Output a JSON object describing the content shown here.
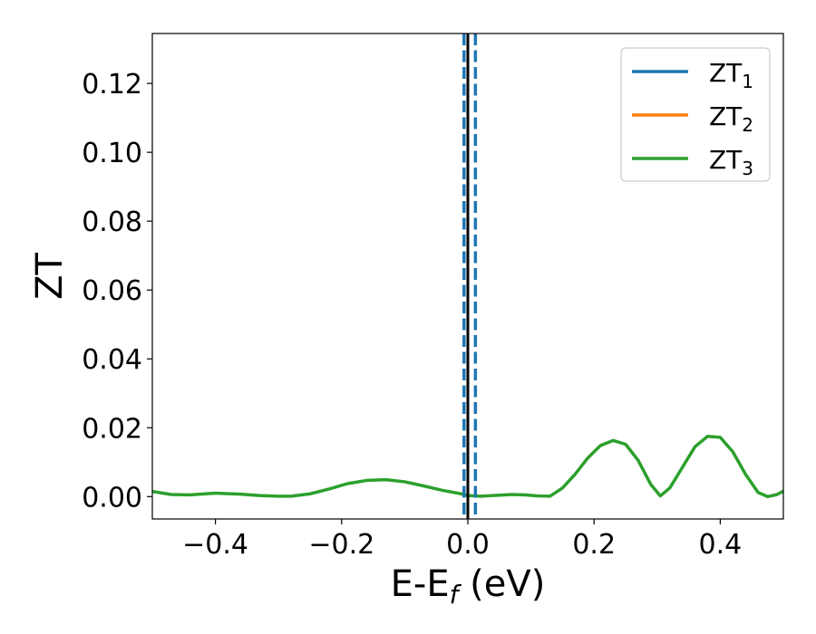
{
  "chart_data": {
    "type": "line",
    "xlabel": {
      "main": "E-E",
      "sub": "f",
      "unit": " (eV)"
    },
    "ylabel": "ZT",
    "xlim": [
      -0.5,
      0.5
    ],
    "ylim": [
      -0.0065,
      0.1345
    ],
    "xticks": [
      -0.4,
      -0.2,
      0.0,
      0.2,
      0.4
    ],
    "xtick_labels": [
      "−0.4",
      "−0.2",
      "0.0",
      "0.2",
      "0.4"
    ],
    "yticks": [
      0.0,
      0.02,
      0.04,
      0.06,
      0.08,
      0.1,
      0.12
    ],
    "ytick_labels": [
      "0.00",
      "0.02",
      "0.04",
      "0.06",
      "0.08",
      "0.10",
      "0.12"
    ],
    "grid": false,
    "legend_position": "top-right",
    "series": [
      {
        "name": "ZT",
        "sub": "1",
        "color": "#1f77b4",
        "points": []
      },
      {
        "name": "ZT",
        "sub": "2",
        "color": "#ff7f0e",
        "points": []
      },
      {
        "name": "ZT",
        "sub": "3",
        "color": "#2ca02c",
        "points": [
          [
            -0.5,
            0.0015
          ],
          [
            -0.47,
            0.0006
          ],
          [
            -0.44,
            0.0005
          ],
          [
            -0.4,
            0.001
          ],
          [
            -0.36,
            0.0007
          ],
          [
            -0.33,
            0.0003
          ],
          [
            -0.3,
            0.0001
          ],
          [
            -0.28,
            0.0001
          ],
          [
            -0.25,
            0.0008
          ],
          [
            -0.22,
            0.0022
          ],
          [
            -0.19,
            0.0038
          ],
          [
            -0.16,
            0.0047
          ],
          [
            -0.13,
            0.0049
          ],
          [
            -0.1,
            0.0043
          ],
          [
            -0.07,
            0.0031
          ],
          [
            -0.04,
            0.0018
          ],
          [
            -0.01,
            0.0008
          ],
          [
            0.0,
            0.0003
          ],
          [
            0.02,
            0.0001
          ],
          [
            0.04,
            0.0003
          ],
          [
            0.07,
            0.0006
          ],
          [
            0.09,
            0.0005
          ],
          [
            0.11,
            0.0002
          ],
          [
            0.13,
            0.0001
          ],
          [
            0.15,
            0.0025
          ],
          [
            0.17,
            0.0065
          ],
          [
            0.19,
            0.0112
          ],
          [
            0.21,
            0.0148
          ],
          [
            0.23,
            0.0163
          ],
          [
            0.25,
            0.0152
          ],
          [
            0.27,
            0.0105
          ],
          [
            0.29,
            0.0035
          ],
          [
            0.305,
            0.0002
          ],
          [
            0.32,
            0.0025
          ],
          [
            0.34,
            0.0085
          ],
          [
            0.36,
            0.0145
          ],
          [
            0.38,
            0.0175
          ],
          [
            0.4,
            0.0172
          ],
          [
            0.42,
            0.013
          ],
          [
            0.44,
            0.0065
          ],
          [
            0.46,
            0.0012
          ],
          [
            0.475,
            0.0
          ],
          [
            0.49,
            0.0006
          ],
          [
            0.5,
            0.0016
          ]
        ]
      }
    ],
    "vlines": [
      {
        "x": 0.0,
        "color": "#000000",
        "style": "solid"
      },
      {
        "x": -0.006,
        "color": "#1f77b4",
        "style": "dashed"
      },
      {
        "x": 0.012,
        "color": "#1f77b4",
        "style": "dashed"
      }
    ]
  }
}
